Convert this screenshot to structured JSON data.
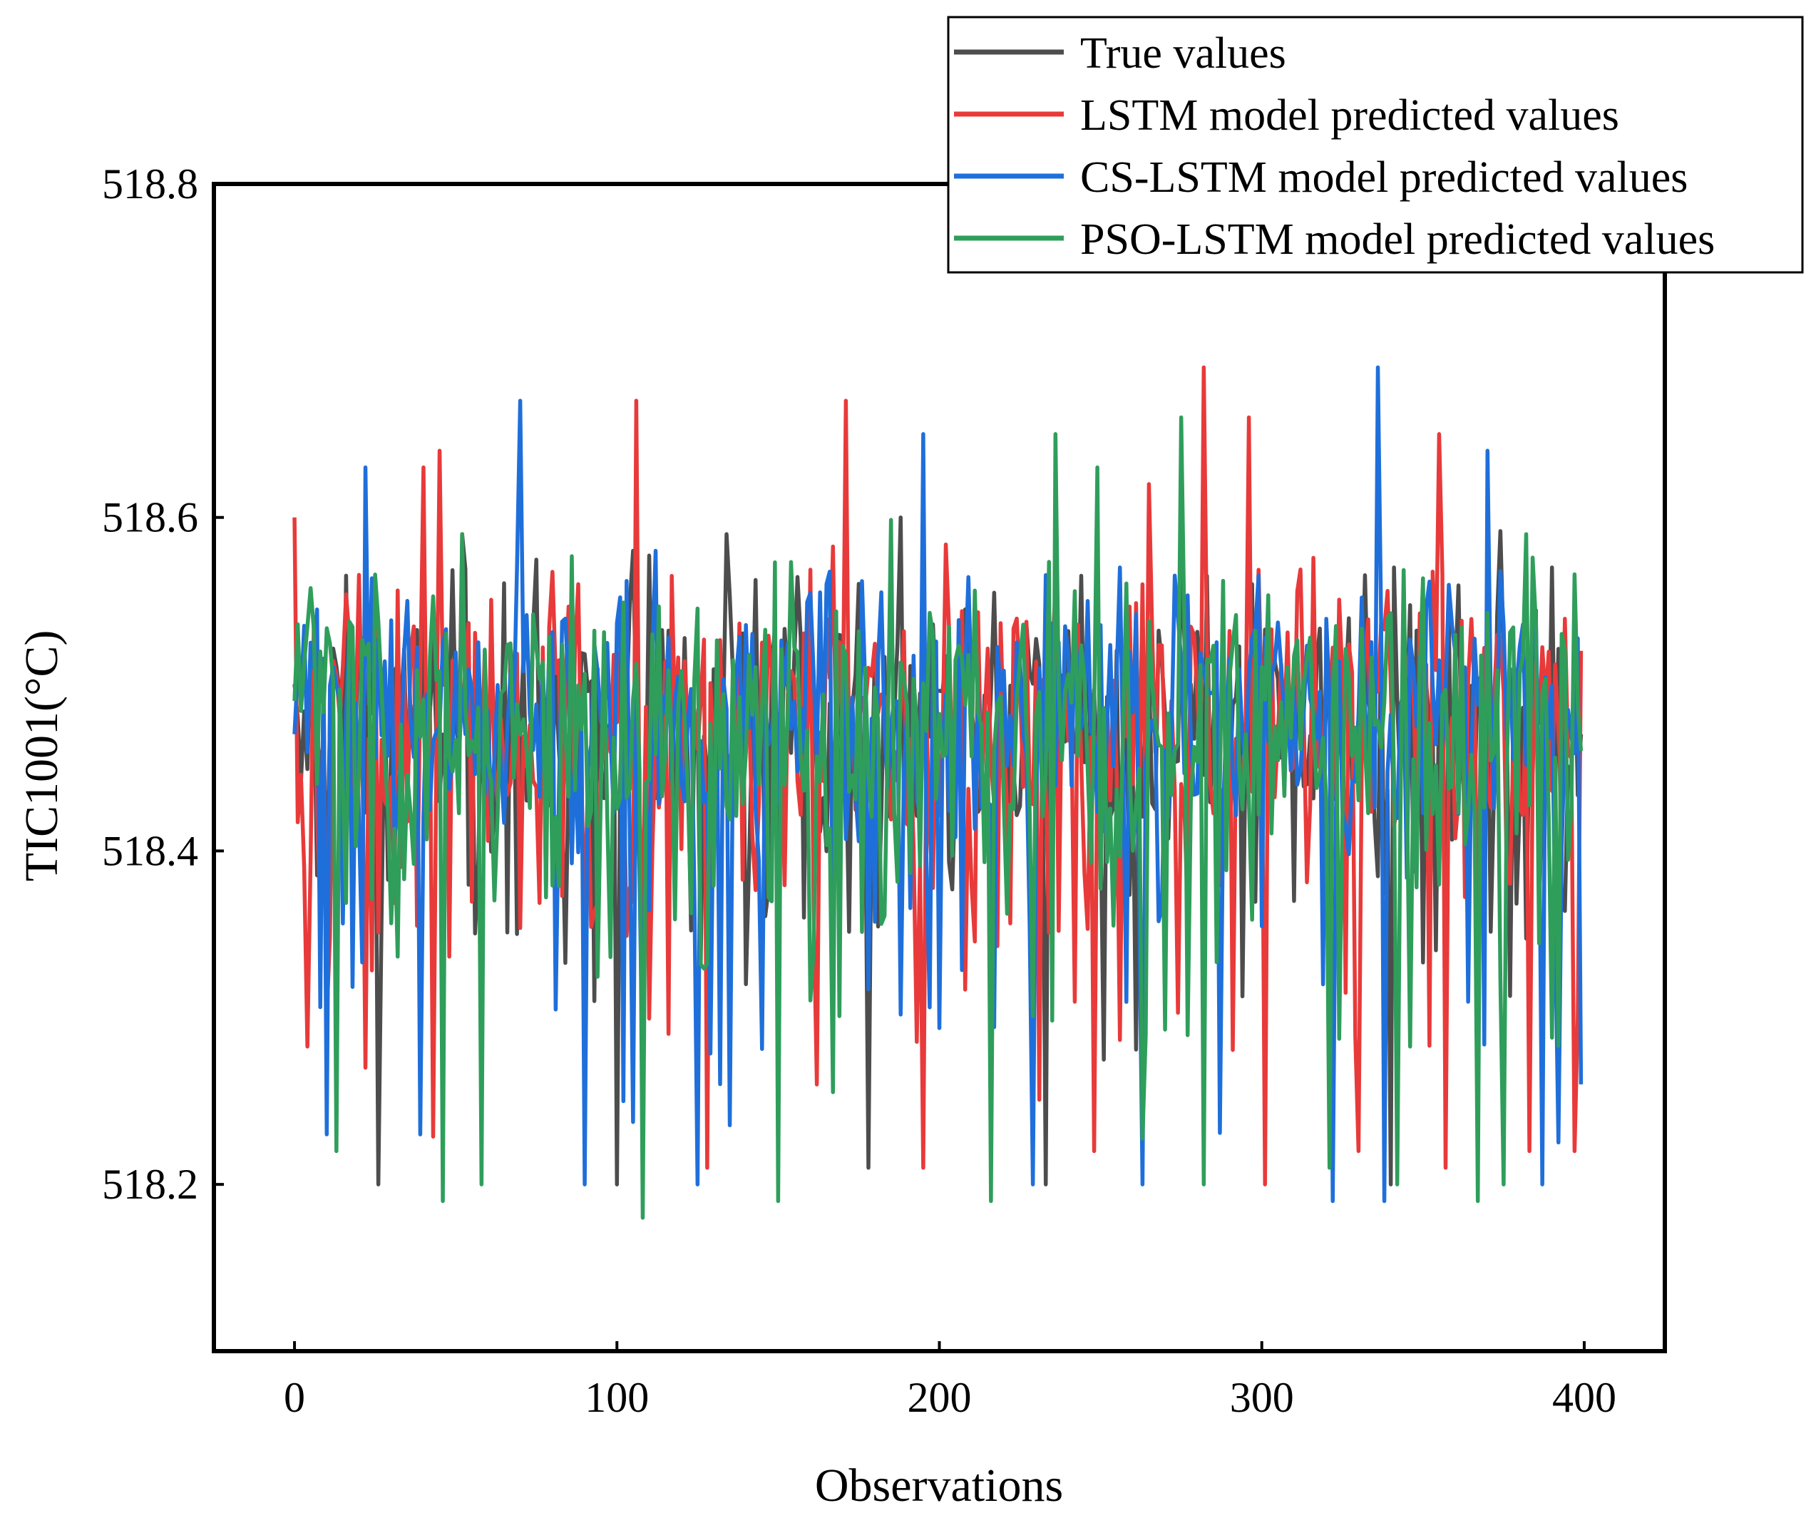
{
  "chart_data": {
    "type": "line",
    "title": "",
    "xlabel": "Observations",
    "ylabel": "TIC1001(°C)",
    "xlim": [
      -25,
      425
    ],
    "ylim": [
      518.1,
      518.8
    ],
    "xticks": [
      0,
      100,
      200,
      300,
      400
    ],
    "xtick_labels": [
      "0",
      "100",
      "200",
      "300",
      "400"
    ],
    "yticks": [
      518.2,
      518.4,
      518.6,
      518.8
    ],
    "ytick_labels": [
      "518.2",
      "518.4",
      "518.6",
      "518.8"
    ],
    "grid": false,
    "legend_position": "top-right",
    "n_points": 400,
    "series": [
      {
        "name": "True values",
        "color": "#4d4d4d",
        "anchors": [
          {
            "x": 0,
            "y": 518.5
          },
          {
            "x": 10,
            "y": 518.38
          },
          {
            "x": 20,
            "y": 518.53
          },
          {
            "x": 26,
            "y": 518.2
          },
          {
            "x": 40,
            "y": 518.55
          },
          {
            "x": 52,
            "y": 518.59
          },
          {
            "x": 70,
            "y": 518.47
          },
          {
            "x": 100,
            "y": 518.2
          },
          {
            "x": 105,
            "y": 518.58
          },
          {
            "x": 134,
            "y": 518.59
          },
          {
            "x": 158,
            "y": 518.36
          },
          {
            "x": 178,
            "y": 518.21
          },
          {
            "x": 188,
            "y": 518.6
          },
          {
            "x": 233,
            "y": 518.2
          },
          {
            "x": 236,
            "y": 518.56
          },
          {
            "x": 275,
            "y": 518.58
          },
          {
            "x": 297,
            "y": 518.56
          },
          {
            "x": 310,
            "y": 518.37
          },
          {
            "x": 340,
            "y": 518.2
          },
          {
            "x": 341,
            "y": 518.57
          },
          {
            "x": 370,
            "y": 518.52
          },
          {
            "x": 390,
            "y": 518.57
          },
          {
            "x": 399,
            "y": 518.47
          }
        ]
      },
      {
        "name": "LSTM model predicted values",
        "color": "#e83a3a",
        "anchors": [
          {
            "x": 0,
            "y": 518.6
          },
          {
            "x": 3,
            "y": 518.39
          },
          {
            "x": 22,
            "y": 518.27
          },
          {
            "x": 40,
            "y": 518.63
          },
          {
            "x": 45,
            "y": 518.64
          },
          {
            "x": 106,
            "y": 518.67
          },
          {
            "x": 128,
            "y": 518.21
          },
          {
            "x": 171,
            "y": 518.67
          },
          {
            "x": 195,
            "y": 518.21
          },
          {
            "x": 248,
            "y": 518.22
          },
          {
            "x": 265,
            "y": 518.62
          },
          {
            "x": 282,
            "y": 518.69
          },
          {
            "x": 296,
            "y": 518.66
          },
          {
            "x": 301,
            "y": 518.2
          },
          {
            "x": 330,
            "y": 518.22
          },
          {
            "x": 355,
            "y": 518.65
          },
          {
            "x": 357,
            "y": 518.21
          },
          {
            "x": 383,
            "y": 518.22
          },
          {
            "x": 397,
            "y": 518.22
          },
          {
            "x": 399,
            "y": 518.52
          }
        ]
      },
      {
        "name": "CS-LSTM model predicted values",
        "color": "#1f6fdb",
        "anchors": [
          {
            "x": 0,
            "y": 518.47
          },
          {
            "x": 10,
            "y": 518.23
          },
          {
            "x": 22,
            "y": 518.63
          },
          {
            "x": 39,
            "y": 518.23
          },
          {
            "x": 70,
            "y": 518.67
          },
          {
            "x": 90,
            "y": 518.2
          },
          {
            "x": 112,
            "y": 518.58
          },
          {
            "x": 125,
            "y": 518.2
          },
          {
            "x": 195,
            "y": 518.65
          },
          {
            "x": 229,
            "y": 518.2
          },
          {
            "x": 256,
            "y": 518.57
          },
          {
            "x": 263,
            "y": 518.2
          },
          {
            "x": 322,
            "y": 518.19
          },
          {
            "x": 336,
            "y": 518.69
          },
          {
            "x": 338,
            "y": 518.19
          },
          {
            "x": 370,
            "y": 518.64
          },
          {
            "x": 387,
            "y": 518.2
          },
          {
            "x": 399,
            "y": 518.26
          }
        ]
      },
      {
        "name": "PSO-LSTM model predicted values",
        "color": "#2f9e5b",
        "anchors": [
          {
            "x": 0,
            "y": 518.49
          },
          {
            "x": 13,
            "y": 518.22
          },
          {
            "x": 46,
            "y": 518.19
          },
          {
            "x": 52,
            "y": 518.59
          },
          {
            "x": 58,
            "y": 518.2
          },
          {
            "x": 108,
            "y": 518.18
          },
          {
            "x": 150,
            "y": 518.19
          },
          {
            "x": 216,
            "y": 518.19
          },
          {
            "x": 236,
            "y": 518.65
          },
          {
            "x": 249,
            "y": 518.63
          },
          {
            "x": 275,
            "y": 518.66
          },
          {
            "x": 282,
            "y": 518.2
          },
          {
            "x": 321,
            "y": 518.21
          },
          {
            "x": 342,
            "y": 518.2
          },
          {
            "x": 367,
            "y": 518.19
          },
          {
            "x": 375,
            "y": 518.2
          },
          {
            "x": 382,
            "y": 518.59
          },
          {
            "x": 399,
            "y": 518.46
          }
        ]
      }
    ]
  }
}
